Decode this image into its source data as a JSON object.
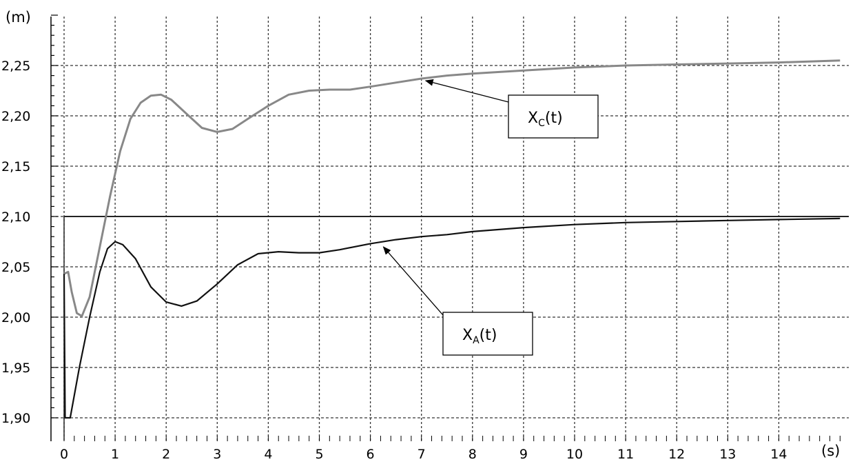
{
  "chart_data": {
    "type": "line",
    "ylabel": "(m)",
    "xlabel": "(s)",
    "xlim": [
      0,
      15.2
    ],
    "ylim": [
      1.885,
      2.315
    ],
    "grid": true,
    "legend": "none",
    "x_ticks": [
      0,
      1,
      2,
      3,
      4,
      5,
      6,
      7,
      8,
      9,
      10,
      11,
      12,
      13,
      14
    ],
    "x_tick_labels": [
      "0",
      "1",
      "2",
      "3",
      "4",
      "5",
      "6",
      "7",
      "8",
      "9",
      "10",
      "11",
      "12",
      "13",
      "14"
    ],
    "y_ticks": [
      1.9,
      1.95,
      2.0,
      2.05,
      2.1,
      2.15,
      2.2,
      2.25
    ],
    "y_tick_labels": [
      "1,90",
      "1,95",
      "2,00",
      "2,05",
      "2,10",
      "2,15",
      "2,20",
      "2,25"
    ],
    "reference_line": {
      "y": 2.1,
      "x_start": 0,
      "color": "#222222"
    },
    "series": [
      {
        "id": "xc",
        "color": "#888888",
        "points": [
          [
            0,
            2.043
          ],
          [
            0.08,
            2.045
          ],
          [
            0.15,
            2.025
          ],
          [
            0.25,
            2.004
          ],
          [
            0.35,
            2.001
          ],
          [
            0.5,
            2.02
          ],
          [
            0.7,
            2.07
          ],
          [
            0.9,
            2.12
          ],
          [
            1.1,
            2.165
          ],
          [
            1.3,
            2.197
          ],
          [
            1.5,
            2.213
          ],
          [
            1.7,
            2.22
          ],
          [
            1.9,
            2.221
          ],
          [
            2.1,
            2.216
          ],
          [
            2.4,
            2.202
          ],
          [
            2.7,
            2.188
          ],
          [
            3.0,
            2.184
          ],
          [
            3.3,
            2.187
          ],
          [
            3.6,
            2.197
          ],
          [
            4.0,
            2.21
          ],
          [
            4.4,
            2.221
          ],
          [
            4.8,
            2.225
          ],
          [
            5.2,
            2.226
          ],
          [
            5.6,
            2.226
          ],
          [
            6.0,
            2.229
          ],
          [
            6.5,
            2.233
          ],
          [
            7.0,
            2.237
          ],
          [
            7.5,
            2.24
          ],
          [
            8.0,
            2.242
          ],
          [
            9.0,
            2.245
          ],
          [
            10.0,
            2.248
          ],
          [
            11.0,
            2.25
          ],
          [
            12.0,
            2.251
          ],
          [
            13.0,
            2.252
          ],
          [
            14.0,
            2.253
          ],
          [
            15.2,
            2.255
          ]
        ]
      },
      {
        "id": "xa",
        "color": "#111111",
        "points": [
          [
            0,
            2.043
          ],
          [
            0.02,
            1.9
          ],
          [
            0.12,
            1.9
          ],
          [
            0.3,
            1.95
          ],
          [
            0.5,
            2.0
          ],
          [
            0.7,
            2.045
          ],
          [
            0.85,
            2.068
          ],
          [
            1.0,
            2.075
          ],
          [
            1.15,
            2.072
          ],
          [
            1.4,
            2.058
          ],
          [
            1.7,
            2.03
          ],
          [
            2.0,
            2.015
          ],
          [
            2.3,
            2.011
          ],
          [
            2.6,
            2.016
          ],
          [
            3.0,
            2.033
          ],
          [
            3.4,
            2.052
          ],
          [
            3.8,
            2.063
          ],
          [
            4.2,
            2.065
          ],
          [
            4.6,
            2.064
          ],
          [
            5.0,
            2.064
          ],
          [
            5.4,
            2.067
          ],
          [
            6.0,
            2.073
          ],
          [
            6.5,
            2.077
          ],
          [
            7.0,
            2.08
          ],
          [
            7.5,
            2.082
          ],
          [
            8.0,
            2.085
          ],
          [
            9.0,
            2.089
          ],
          [
            10.0,
            2.092
          ],
          [
            11.0,
            2.094
          ],
          [
            12.0,
            2.095
          ],
          [
            13.0,
            2.096
          ],
          [
            14.0,
            2.097
          ],
          [
            15.2,
            2.098
          ]
        ]
      }
    ],
    "annotations": [
      {
        "id": "xc",
        "text_main": "X",
        "text_sub": "C",
        "text_tail": "(t)",
        "arrow_to": [
          7.0,
          2.237
        ]
      },
      {
        "id": "xa",
        "text_main": "X",
        "text_sub": "A",
        "text_tail": "(t)",
        "arrow_to": [
          6.2,
          2.074
        ]
      }
    ]
  }
}
